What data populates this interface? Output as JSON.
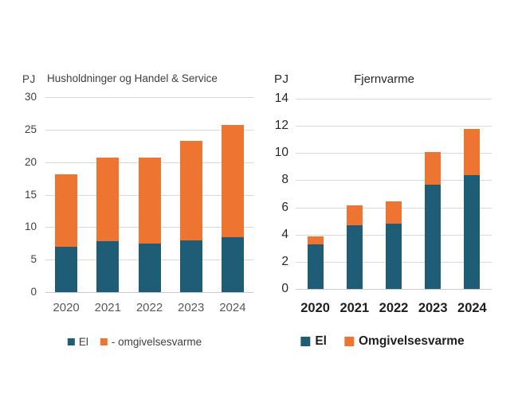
{
  "colors": {
    "el": "#1F5C75",
    "omgivelsesvarme": "#ED7431",
    "gridline": "#D9D9D9",
    "axis_line": "#C9C9C9",
    "background": "#FFFFFF"
  },
  "chart_data": [
    {
      "type": "bar",
      "stacked": true,
      "title": "Husholdninger og Handel & Service",
      "ylabel": "PJ",
      "xlabel": "",
      "categories": [
        "2020",
        "2021",
        "2022",
        "2023",
        "2024"
      ],
      "series": [
        {
          "name": "El",
          "color": "#1F5C75",
          "values": [
            7.0,
            7.8,
            7.5,
            8.0,
            8.5
          ]
        },
        {
          "name": "- omgivelsesvarme",
          "color": "#ED7431",
          "values": [
            11.1,
            12.9,
            13.2,
            15.3,
            17.2
          ]
        }
      ],
      "totals": [
        18.1,
        20.7,
        20.7,
        23.3,
        25.7
      ],
      "ylim": [
        0,
        30
      ],
      "ytick_step": 5,
      "grid": true,
      "legend_position": "bottom"
    },
    {
      "type": "bar",
      "stacked": true,
      "title": "Fjernvarme",
      "ylabel": "PJ",
      "xlabel": "",
      "categories": [
        "2020",
        "2021",
        "2022",
        "2023",
        "2024"
      ],
      "series": [
        {
          "name": "El",
          "color": "#1F5C75",
          "values": [
            3.3,
            4.7,
            4.8,
            7.7,
            8.4
          ]
        },
        {
          "name": "Omgivelsesvarme",
          "color": "#ED7431",
          "values": [
            0.55,
            1.45,
            1.65,
            2.35,
            3.35
          ]
        }
      ],
      "totals": [
        3.85,
        6.15,
        6.45,
        10.05,
        11.75
      ],
      "ylim": [
        0,
        14
      ],
      "ytick_step": 2,
      "grid": true,
      "legend_position": "bottom"
    }
  ]
}
